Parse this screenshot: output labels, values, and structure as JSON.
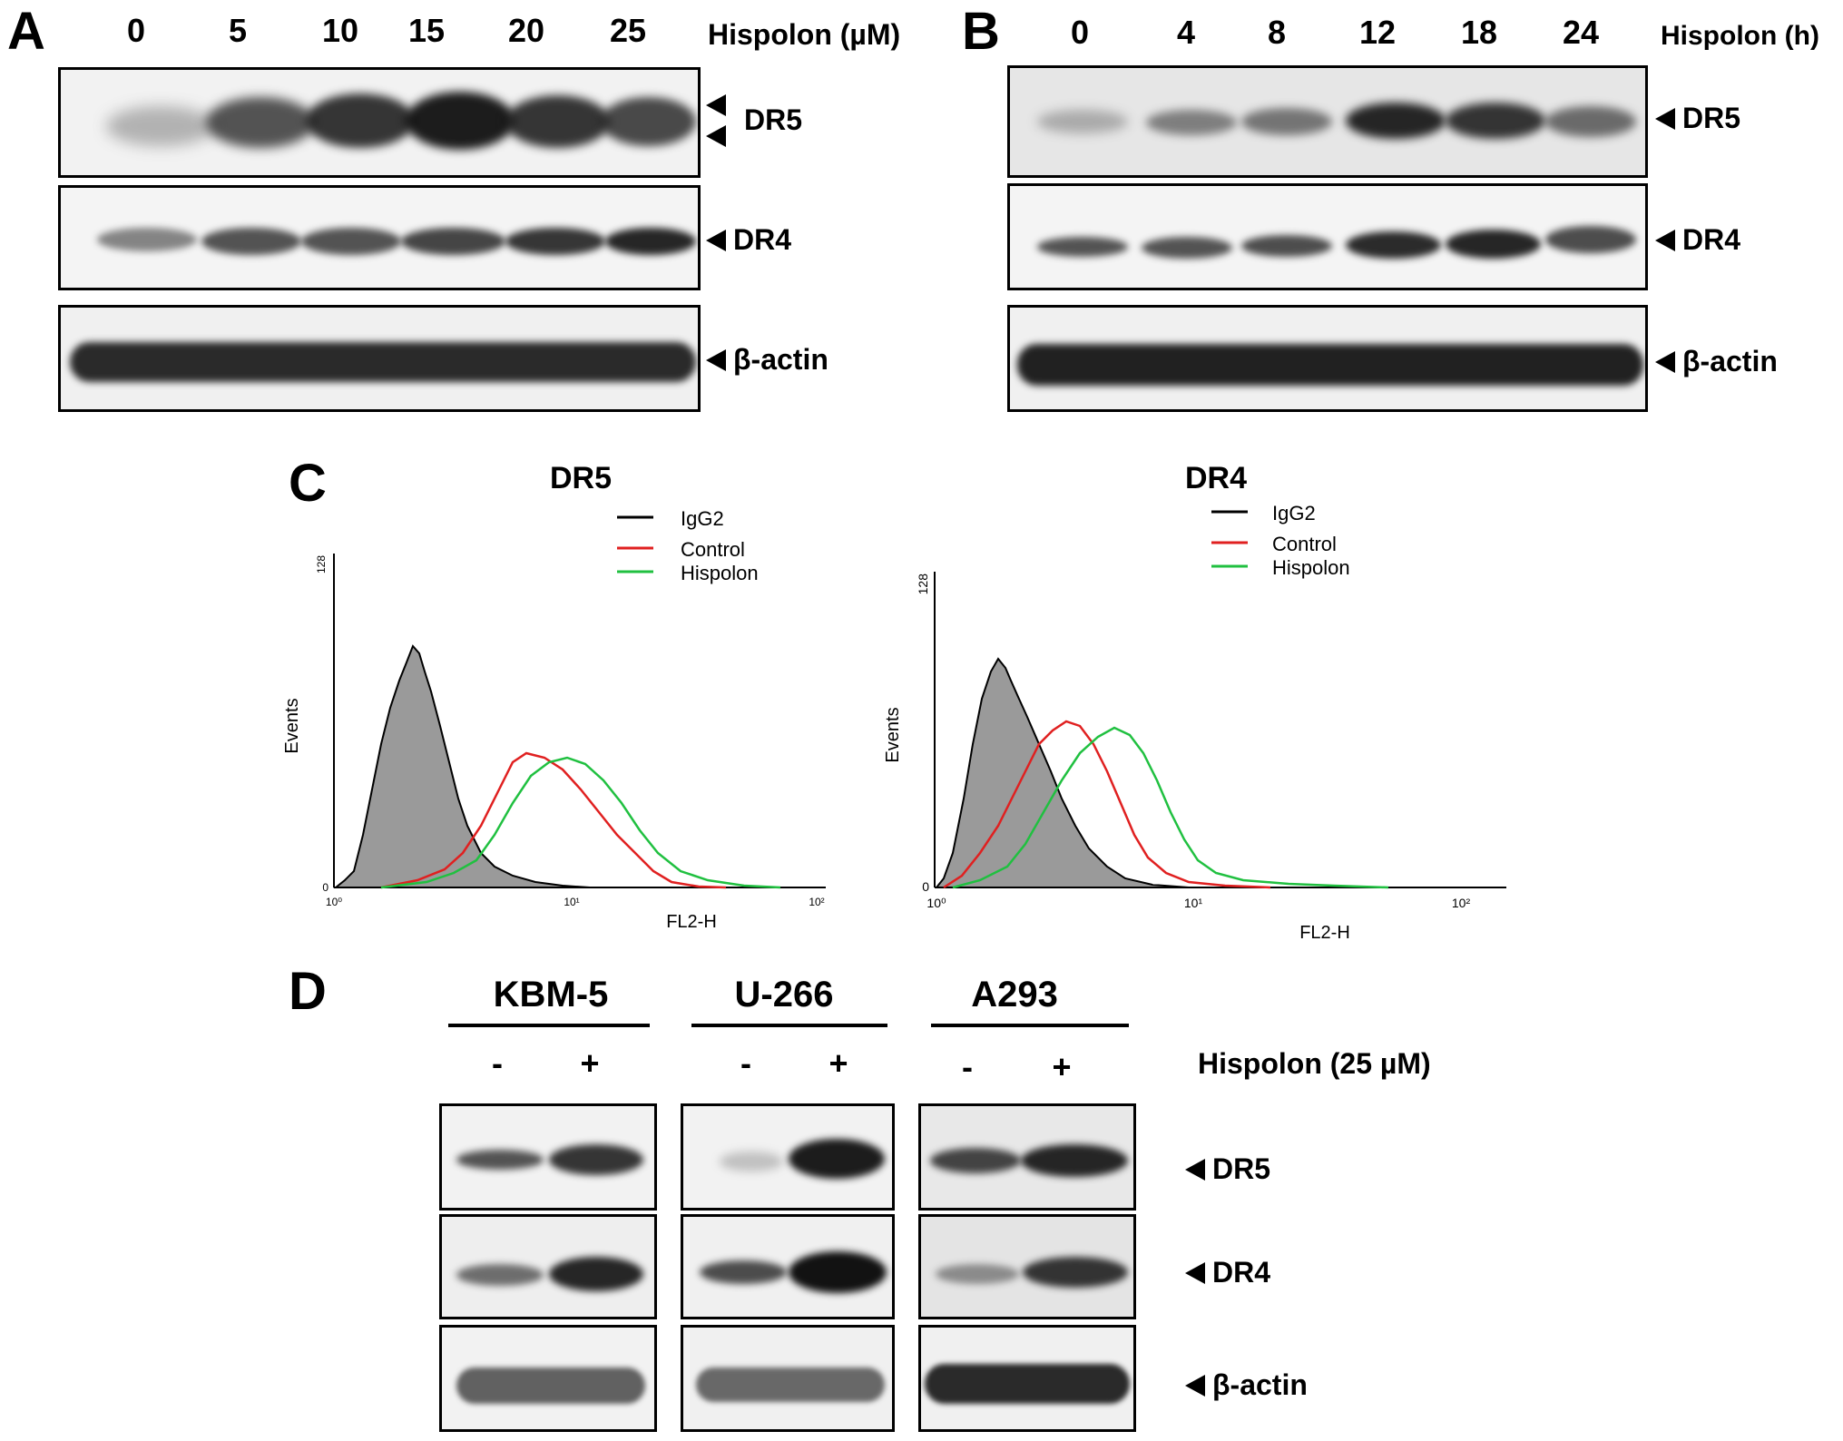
{
  "panelA": {
    "letter": "A",
    "lanes": [
      "0",
      "5",
      "10",
      "15",
      "20",
      "25"
    ],
    "treatment_label": "Hispolon (µM)",
    "markers": [
      "DR5",
      "DR4",
      "β-actin"
    ]
  },
  "panelB": {
    "letter": "B",
    "lanes": [
      "0",
      "4",
      "8",
      "12",
      "18",
      "24"
    ],
    "treatment_label": "Hispolon (h)",
    "markers": [
      "DR5",
      "DR4",
      "β-actin"
    ]
  },
  "panelC": {
    "letter": "C",
    "legend": [
      "IgG2",
      "Control",
      "Hispolon"
    ],
    "colors": {
      "IgG2": "#000000",
      "Control": "#e02020",
      "Hispolon": "#20c040",
      "fill": "#9a9a9a"
    },
    "plots": [
      {
        "title": "DR5",
        "ylabel": "Events",
        "xlabel": "FL2-H",
        "ytick": "128",
        "ytick0": "0",
        "xticks": [
          "10⁰",
          "10¹",
          "10²"
        ]
      },
      {
        "title": "DR4",
        "ylabel": "Events",
        "xlabel": "FL2-H",
        "ytick": "128",
        "ytick0": "0",
        "xticks": [
          "10⁰",
          "10¹",
          "10²"
        ]
      }
    ]
  },
  "panelD": {
    "letter": "D",
    "cell_lines": [
      "KBM-5",
      "U-266",
      "A293"
    ],
    "signs": [
      "-",
      "+"
    ],
    "treatment_label": "Hispolon (25 µM)",
    "markers": [
      "DR5",
      "DR4",
      "β-actin"
    ]
  }
}
